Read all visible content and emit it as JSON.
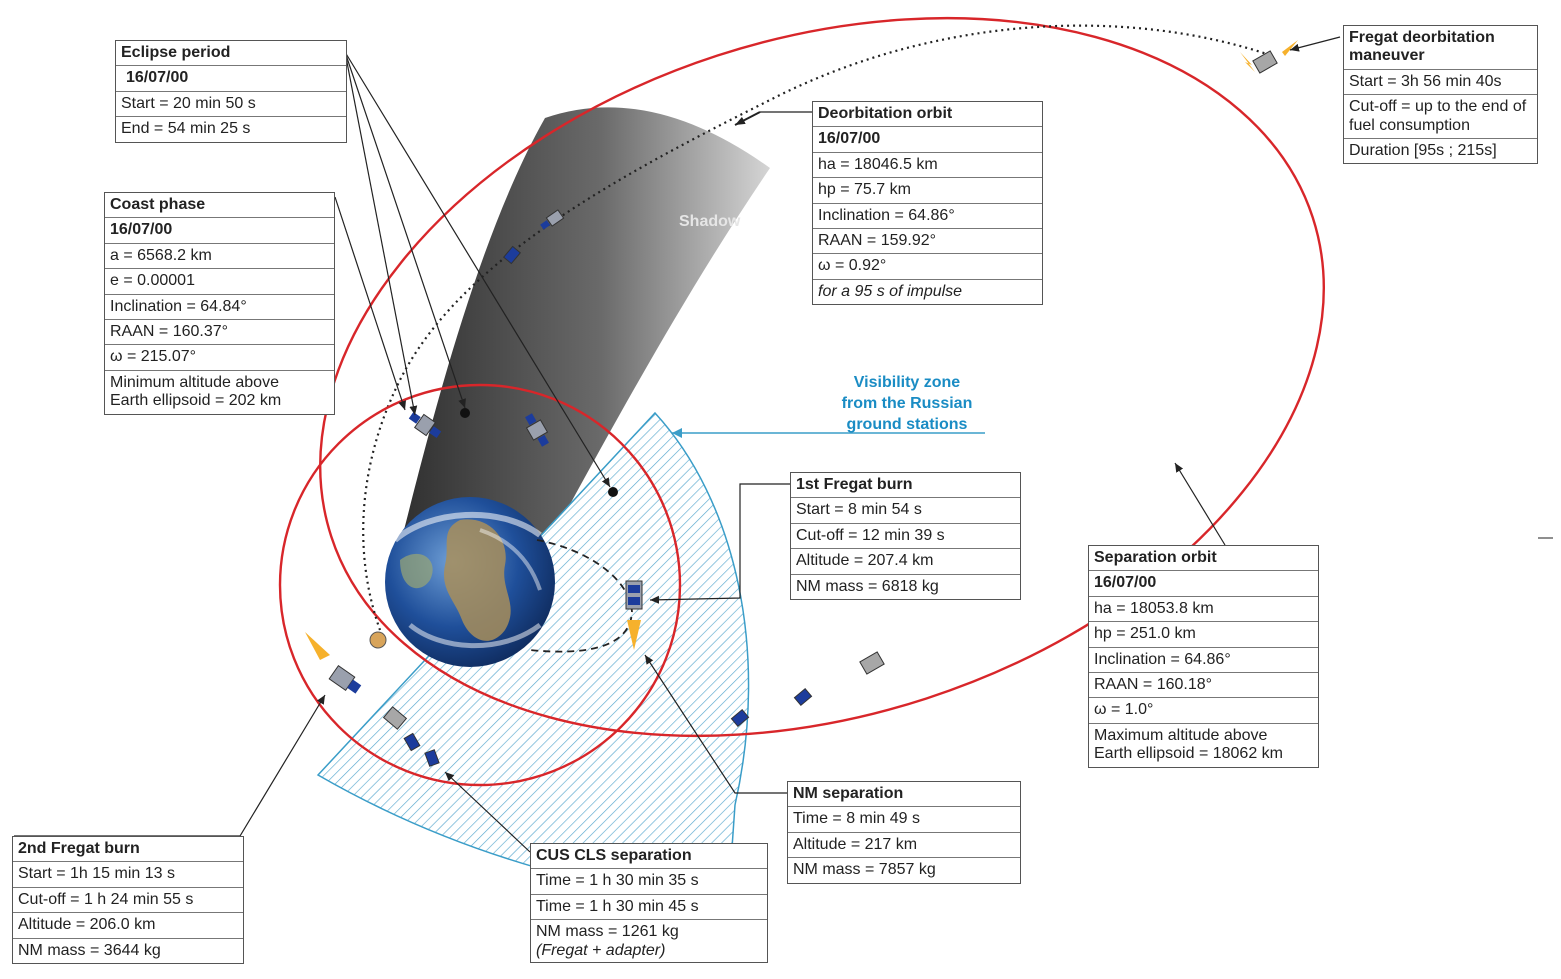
{
  "shadow_label": "Shadow",
  "visibility_label": [
    "Visibility zone",
    "from the Russian",
    "ground stations"
  ],
  "colors": {
    "orbit": "#d8262a",
    "visibility_zone": "#3a9dc8",
    "visibility_label": "#1a8cc4",
    "shadow_dark": "#2e2e2e",
    "shadow_light": "#d5d5d5",
    "earth_ocean": "#1f4f9a"
  },
  "boxes": {
    "eclipse": {
      "title": "Eclipse period",
      "date": "16/07/00",
      "rows": [
        "Start = 20 min 50 s",
        "End = 54 min 25 s"
      ]
    },
    "coast": {
      "title": "Coast phase",
      "date": "16/07/00",
      "rows": [
        "a = 6568.2 km",
        "e = 0.00001",
        "Inclination = 64.84°",
        "RAAN = 160.37°",
        "ω = 215.07°"
      ],
      "note": "Minimum altitude above Earth ellipsoid = 202 km"
    },
    "deorbit_orbit": {
      "title": "Deorbitation  orbit",
      "date": "16/07/00",
      "rows": [
        "ha = 18046.5 km",
        "hp = 75.7 km",
        "Inclination = 64.86°",
        "RAAN = 159.92°",
        "ω = 0.92°"
      ],
      "note": "for a 95 s of impulse"
    },
    "fregat_deorbit": {
      "title": "Fregat deorbitation maneuver",
      "rows": [
        "Start = 3h 56 min 40s",
        "Cut-off = up to the end of fuel consumption",
        "Duration [95s ; 215s]"
      ]
    },
    "first_burn": {
      "title": "1st Fregat burn",
      "rows": [
        "Start = 8 min 54 s",
        "Cut-off = 12 min 39 s",
        "Altitude = 207.4 km",
        "NM mass = 6818 kg"
      ]
    },
    "separation_orbit": {
      "title": "Separation orbit",
      "date": "16/07/00",
      "rows": [
        "ha = 18053.8 km",
        "hp = 251.0 km",
        "Inclination = 64.86°",
        "RAAN = 160.18°",
        "ω = 1.0°"
      ],
      "note": "Maximum altitude above Earth ellipsoid = 18062 km"
    },
    "nm_separation": {
      "title": "NM separation",
      "rows": [
        "Time = 8 min 49 s",
        "Altitude = 217 km",
        "NM mass = 7857 kg"
      ]
    },
    "cus_cls": {
      "title": "CUS CLS separation",
      "rows": [
        "Time = 1 h 30 min 35 s",
        "Time = 1 h 30 min 45 s",
        "NM mass = 1261 kg"
      ],
      "note": "(Fregat + adapter)"
    },
    "second_burn": {
      "title": "2nd Fregat burn",
      "rows": [
        "Start = 1h 15 min 13 s",
        "Cut-off = 1 h 24 min 55 s",
        "Altitude = 206.0 km",
        "NM mass = 3644 kg"
      ]
    }
  }
}
